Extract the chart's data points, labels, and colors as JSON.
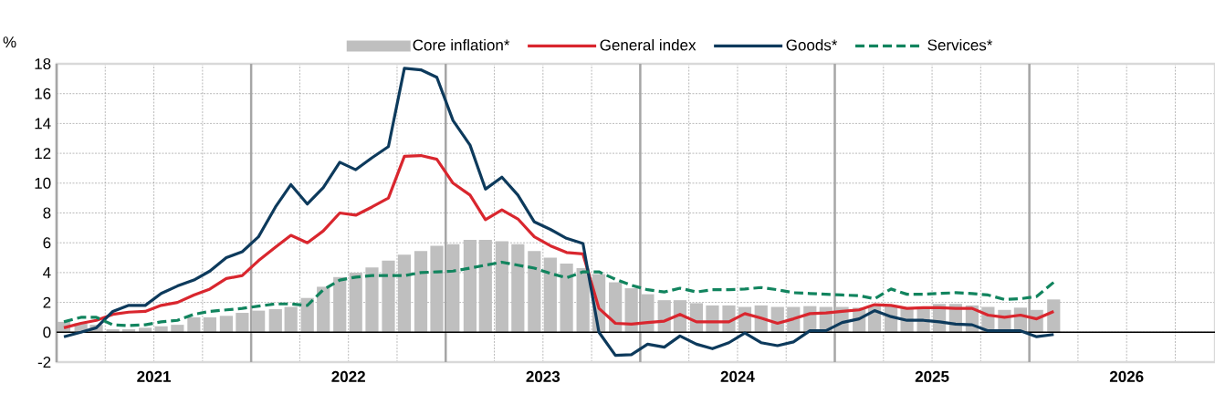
{
  "chart_data": {
    "type": "line",
    "ylabel": "%",
    "x": [
      "2021-01-15",
      "2021-02-15",
      "2021-03-15",
      "2021-04-15",
      "2021-05-15",
      "2021-06-15",
      "2021-07-15",
      "2021-08-15",
      "2021-09-15",
      "2021-10-15",
      "2021-11-15",
      "2021-12-15",
      "2022-01-15",
      "2022-02-15",
      "2022-03-15",
      "2022-04-15",
      "2022-05-15",
      "2022-06-15",
      "2022-07-15",
      "2022-08-15",
      "2022-09-15",
      "2022-10-15",
      "2022-11-15",
      "2022-12-15",
      "2023-01-15",
      "2023-02-15",
      "2023-03-15",
      "2023-04-15",
      "2023-05-15",
      "2023-06-15",
      "2023-07-15",
      "2023-08-15",
      "2023-09-15",
      "2023-10-15",
      "2023-11-15",
      "2023-12-15",
      "2024-01-15",
      "2024-02-15",
      "2024-03-15",
      "2024-04-15",
      "2024-05-15",
      "2024-06-15",
      "2024-07-15",
      "2024-08-15",
      "2024-09-15",
      "2024-10-15",
      "2024-11-15",
      "2024-12-15",
      "2025-01-15",
      "2025-02-15",
      "2025-03-15",
      "2025-04-15",
      "2025-05-15",
      "2025-06-15",
      "2025-07-15",
      "2025-08-15",
      "2025-09-15",
      "2025-10-15",
      "2025-11-15",
      "2025-12-15",
      "2026-01-15",
      "2026-02-15"
    ],
    "series": [
      {
        "name": "Core inflation*",
        "type": "bar",
        "color": "#bfbfbf",
        "values": [
          0.7,
          0.6,
          0.5,
          0.2,
          0.2,
          0.3,
          0.4,
          0.5,
          1.0,
          1.0,
          1.1,
          1.3,
          1.45,
          1.55,
          1.7,
          2.3,
          3.05,
          3.7,
          4.0,
          4.35,
          4.8,
          5.2,
          5.45,
          5.8,
          5.9,
          6.2,
          6.2,
          6.1,
          5.9,
          5.45,
          5.0,
          4.6,
          4.3,
          3.9,
          3.35,
          2.95,
          2.55,
          2.15,
          2.15,
          1.95,
          1.8,
          1.8,
          1.7,
          1.8,
          1.7,
          1.7,
          1.75,
          1.7,
          1.7,
          1.65,
          1.8,
          1.8,
          1.6,
          1.7,
          1.9,
          1.9,
          1.8,
          1.7,
          1.5,
          1.65,
          1.5,
          2.2
        ]
      },
      {
        "name": "General index",
        "color": "#d9262e",
        "line_style": "solid",
        "values": [
          0.3,
          0.6,
          0.8,
          1.2,
          1.35,
          1.4,
          1.8,
          2.0,
          2.5,
          2.9,
          3.6,
          3.8,
          4.8,
          5.7,
          6.5,
          6.0,
          6.8,
          8.0,
          7.85,
          8.4,
          9.0,
          11.8,
          11.85,
          11.6,
          10.0,
          9.2,
          7.55,
          8.2,
          7.6,
          6.4,
          5.8,
          5.35,
          5.25,
          1.6,
          0.6,
          0.55,
          0.65,
          0.75,
          1.2,
          0.7,
          0.7,
          0.7,
          1.25,
          0.95,
          0.6,
          0.9,
          1.25,
          1.3,
          1.4,
          1.5,
          1.85,
          1.8,
          1.6,
          1.65,
          1.65,
          1.6,
          1.6,
          1.15,
          1.0,
          1.15,
          0.9,
          1.4
        ]
      },
      {
        "name": "Goods*",
        "color": "#0d3a5c",
        "line_style": "solid",
        "values": [
          -0.3,
          0.0,
          0.3,
          1.4,
          1.8,
          1.8,
          2.6,
          3.1,
          3.5,
          4.1,
          5.0,
          5.4,
          6.4,
          8.4,
          9.9,
          8.6,
          9.7,
          11.4,
          10.9,
          11.7,
          12.45,
          17.7,
          17.6,
          17.1,
          14.2,
          12.55,
          9.6,
          10.4,
          9.2,
          7.4,
          6.9,
          6.3,
          5.95,
          0.0,
          -1.55,
          -1.5,
          -0.8,
          -1.0,
          -0.25,
          -0.8,
          -1.1,
          -0.7,
          -0.05,
          -0.7,
          -0.9,
          -0.65,
          0.1,
          0.1,
          0.65,
          0.9,
          1.45,
          1.05,
          0.8,
          0.8,
          0.7,
          0.55,
          0.5,
          0.1,
          0.1,
          0.1,
          -0.3,
          -0.15
        ]
      },
      {
        "name": "Services*",
        "color": "#11845e",
        "line_style": "dashed",
        "values": [
          0.7,
          1.0,
          1.0,
          0.5,
          0.45,
          0.5,
          0.7,
          0.8,
          1.2,
          1.4,
          1.5,
          1.6,
          1.75,
          1.9,
          1.9,
          1.8,
          2.85,
          3.5,
          3.7,
          3.8,
          3.8,
          3.8,
          4.0,
          4.05,
          4.1,
          4.3,
          4.5,
          4.7,
          4.5,
          4.3,
          3.95,
          3.65,
          4.05,
          4.05,
          3.55,
          3.15,
          2.85,
          2.7,
          2.95,
          2.7,
          2.85,
          2.85,
          2.9,
          3.0,
          2.85,
          2.65,
          2.6,
          2.55,
          2.5,
          2.45,
          2.25,
          2.9,
          2.55,
          2.55,
          2.6,
          2.65,
          2.6,
          2.5,
          2.2,
          2.25,
          2.4,
          3.35
        ]
      }
    ],
    "xlim": [
      "2021-01-01",
      "2026-12-15"
    ],
    "xticks": [
      {
        "value": "2021-01-01",
        "label": null
      },
      {
        "value": "2021-07-01",
        "label": "2021"
      },
      {
        "value": "2022-01-01",
        "label": null
      },
      {
        "value": "2022-07-01",
        "label": "2022"
      },
      {
        "value": "2023-01-01",
        "label": null
      },
      {
        "value": "2023-07-01",
        "label": "2023"
      },
      {
        "value": "2024-01-01",
        "label": null
      },
      {
        "value": "2024-07-01",
        "label": "2024"
      },
      {
        "value": "2025-01-01",
        "label": null
      },
      {
        "value": "2025-07-01",
        "label": "2025"
      },
      {
        "value": "2026-01-01",
        "label": null
      },
      {
        "value": "2026-07-01",
        "label": "2026"
      }
    ],
    "ylim": [
      -2,
      18
    ],
    "yticks": [
      -2,
      0,
      2,
      4,
      6,
      8,
      10,
      12,
      14,
      16,
      18
    ],
    "ref_lines": [
      {
        "axis": "y",
        "value": 0,
        "color": "#000000"
      }
    ],
    "grid": true,
    "legend": "top",
    "marker": "none"
  }
}
